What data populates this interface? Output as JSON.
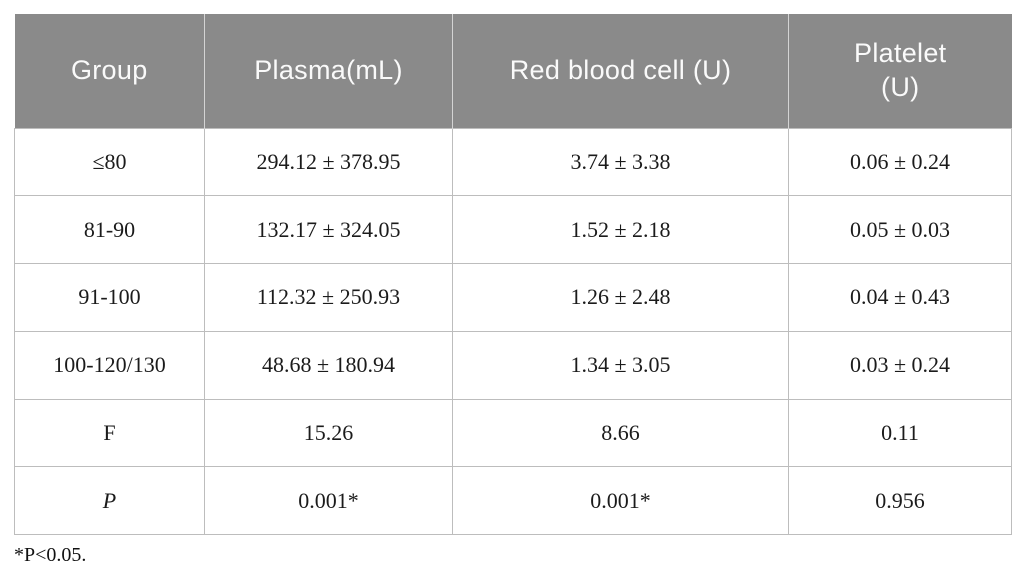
{
  "table": {
    "title_semantic": "blood-product-transfusion-statistics",
    "header": [
      "Group",
      "Plasma(mL)",
      "Red blood cell (U)",
      "Platelet (U)"
    ],
    "rows": [
      {
        "cells": [
          "≤80",
          "294.12 ± 378.95",
          "3.74 ± 3.38",
          "0.06 ± 0.24"
        ]
      },
      {
        "cells": [
          "81-90",
          "132.17 ± 324.05",
          "1.52 ± 2.18",
          "0.05 ± 0.03"
        ]
      },
      {
        "cells": [
          "91-100",
          "112.32 ± 250.93",
          "1.26 ± 2.48",
          "0.04 ± 0.43"
        ]
      },
      {
        "cells": [
          "100-120/130",
          "48.68 ± 180.94",
          "1.34 ± 3.05",
          "0.03 ± 0.24"
        ]
      },
      {
        "cells": [
          "F",
          "15.26",
          "8.66",
          "0.11"
        ]
      },
      {
        "cells": [
          "P",
          "0.001*",
          "0.001*",
          "0.956"
        ]
      }
    ],
    "footnote": "*P<0.05."
  },
  "colors": {
    "header_background": "#8a8a8a",
    "header_text": "#fafafa",
    "cell_border": "#bdbdbd",
    "body_text": "#1b1b1b",
    "body_background": "#ffffff"
  }
}
